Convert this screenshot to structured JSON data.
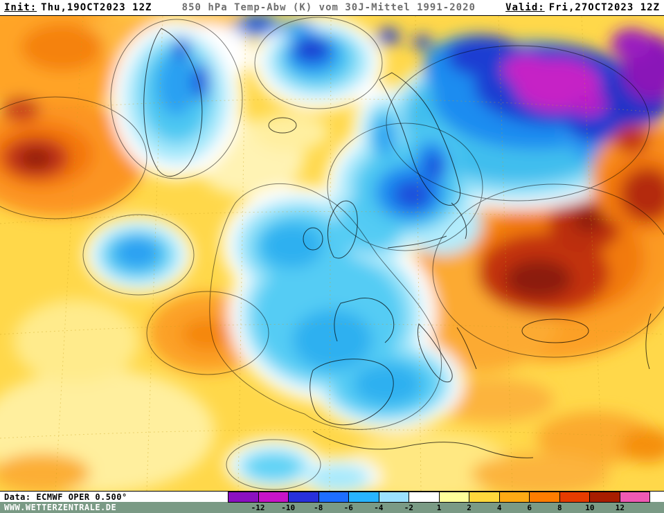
{
  "header": {
    "init_label": "Init:",
    "init_value": "Thu,19OCT2023 12Z",
    "title": "850 hPa Temp-Abw (K) vom 30J-Mittel 1991-2020",
    "valid_label": "Valid:",
    "valid_value": "Fri,27OCT2023 12Z"
  },
  "footer": {
    "data_line": "Data: ECMWF OPER 0.500°",
    "website": "WWW.WETTERZENTRALE.DE"
  },
  "legend": {
    "unit": "K",
    "ticks": [
      "-12",
      "-10",
      "-8",
      "-6",
      "-4",
      "-2",
      "1",
      "2",
      "4",
      "6",
      "8",
      "10",
      "12"
    ],
    "colors": [
      "#8b10c0",
      "#c814c8",
      "#2830dc",
      "#1e6eff",
      "#28b4ff",
      "#9be1ff",
      "#ffffff",
      "#ffff9b",
      "#ffd83c",
      "#ffaa14",
      "#ff7d00",
      "#e63c00",
      "#a81e00",
      "#f05ab4"
    ]
  },
  "map": {
    "base_color": "#FFD84A",
    "cold_color": "#55CCF4",
    "warm_color": "#FCA028",
    "extreme_cold_color": "#C621C6",
    "extreme_warm_color": "#8C1C08"
  }
}
